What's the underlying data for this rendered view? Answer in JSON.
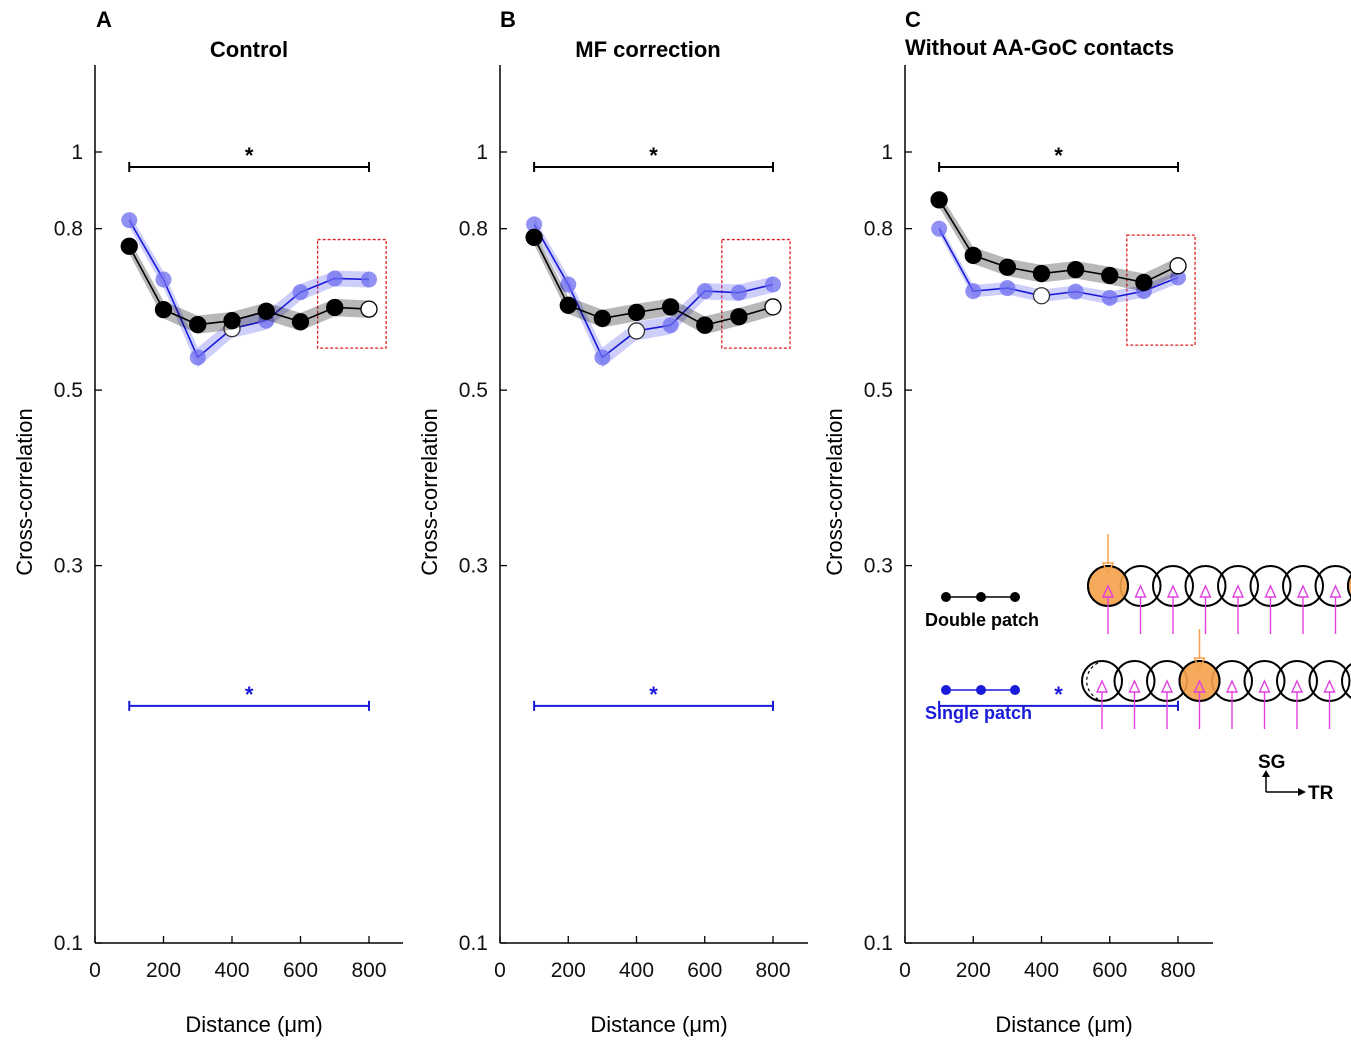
{
  "chart_data": [
    {
      "type": "line",
      "panel_letter": "A",
      "title": "Control",
      "xlabel": "Distance (μm)",
      "ylabel": "Cross-correlation",
      "xlim": [
        0,
        900
      ],
      "ylim": [
        0.1,
        1.2
      ],
      "y_scale": "log",
      "xticks": [
        0,
        200,
        400,
        600,
        800
      ],
      "xtick_labels": [
        "0",
        "200",
        "400",
        "600",
        "800"
      ],
      "yticks": [
        0.1,
        0.3,
        0.5,
        0.8,
        1
      ],
      "ytick_labels": [
        "0.1",
        "0.3",
        "0.5",
        "0.8",
        "1"
      ],
      "grid": false,
      "x": [
        100,
        200,
        300,
        400,
        500,
        600,
        700,
        800
      ],
      "series": [
        {
          "name": "Double patch",
          "color": "#000000",
          "values": [
            0.76,
            0.632,
            0.605,
            0.612,
            0.629,
            0.61,
            0.636,
            0.633
          ],
          "band": 0.016,
          "open_index": 7
        },
        {
          "name": "Single patch",
          "color": "#1a1adb",
          "values": [
            0.82,
            0.69,
            0.55,
            0.598,
            0.612,
            0.665,
            0.692,
            0.69
          ],
          "band": 0.016,
          "open_index": 3
        }
      ],
      "significance": [
        {
          "label": "*",
          "color": "#000000",
          "y": 0.98,
          "x_range": [
            100,
            800
          ]
        },
        {
          "label": "*",
          "color": "#1a1adb",
          "y": 0.2,
          "x_range": [
            100,
            800
          ]
        }
      ],
      "highlight_box": {
        "x_range": [
          650,
          850
        ],
        "y_range": [
          0.565,
          0.775
        ],
        "color": "#e02020"
      }
    },
    {
      "type": "line",
      "panel_letter": "B",
      "title": "MF correction",
      "xlabel": "Distance (μm)",
      "ylabel": "Cross-correlation",
      "xlim": [
        0,
        900
      ],
      "ylim": [
        0.1,
        1.2
      ],
      "y_scale": "log",
      "xticks": [
        0,
        200,
        400,
        600,
        800
      ],
      "xtick_labels": [
        "0",
        "200",
        "400",
        "600",
        "800"
      ],
      "yticks": [
        0.1,
        0.3,
        0.5,
        0.8,
        1
      ],
      "ytick_labels": [
        "0.1",
        "0.3",
        "0.5",
        "0.8",
        "1"
      ],
      "grid": false,
      "x": [
        100,
        200,
        300,
        400,
        500,
        600,
        700,
        800
      ],
      "series": [
        {
          "name": "Double patch",
          "color": "#000000",
          "values": [
            0.78,
            0.64,
            0.616,
            0.627,
            0.637,
            0.604,
            0.619,
            0.637
          ],
          "band": 0.016,
          "open_index": 7
        },
        {
          "name": "Single patch",
          "color": "#1a1adb",
          "values": [
            0.81,
            0.68,
            0.55,
            0.594,
            0.604,
            0.667,
            0.664,
            0.68
          ],
          "band": 0.016,
          "open_index": 3
        }
      ],
      "significance": [
        {
          "label": "*",
          "color": "#000000",
          "y": 0.98,
          "x_range": [
            100,
            800
          ]
        },
        {
          "label": "*",
          "color": "#1a1adb",
          "y": 0.2,
          "x_range": [
            100,
            800
          ]
        }
      ],
      "highlight_box": {
        "x_range": [
          650,
          850
        ],
        "y_range": [
          0.565,
          0.775
        ],
        "color": "#e02020"
      }
    },
    {
      "type": "line",
      "panel_letter": "C",
      "title": "Without AA-GoC contacts",
      "xlabel": "Distance (μm)",
      "ylabel": "Cross-correlation",
      "xlim": [
        0,
        900
      ],
      "ylim": [
        0.1,
        1.2
      ],
      "y_scale": "log",
      "xticks": [
        0,
        200,
        400,
        600,
        800
      ],
      "xtick_labels": [
        "0",
        "200",
        "400",
        "600",
        "800"
      ],
      "yticks": [
        0.1,
        0.3,
        0.5,
        0.8,
        1
      ],
      "ytick_labels": [
        "0.1",
        "0.3",
        "0.5",
        "0.8",
        "1"
      ],
      "grid": false,
      "x": [
        100,
        200,
        300,
        400,
        500,
        600,
        700,
        800
      ],
      "series": [
        {
          "name": "Double patch",
          "color": "#000000",
          "values": [
            0.87,
            0.74,
            0.715,
            0.702,
            0.71,
            0.698,
            0.684,
            0.718
          ],
          "band": 0.018,
          "open_index": 7
        },
        {
          "name": "Single patch",
          "color": "#1a1adb",
          "values": [
            0.8,
            0.667,
            0.673,
            0.658,
            0.666,
            0.654,
            0.667,
            0.694
          ],
          "band": 0.012,
          "open_index": 3
        }
      ],
      "significance": [
        {
          "label": "*",
          "color": "#000000",
          "y": 0.98,
          "x_range": [
            100,
            800
          ]
        },
        {
          "label": "*",
          "color": "#1a1adb",
          "y": 0.2,
          "x_range": [
            100,
            800
          ]
        }
      ],
      "highlight_box": {
        "x_range": [
          650,
          850
        ],
        "y_range": [
          0.57,
          0.785
        ],
        "color": "#e02020"
      }
    }
  ],
  "legend": {
    "double_label": "Double patch",
    "single_label": "Single patch",
    "double_color": "#000000",
    "single_color": "#1a1adb"
  },
  "schematic": {
    "stim_color": "#f5a14a",
    "input_color": "#e040e0",
    "axis_up_label": "SG",
    "axis_right_label": "TR"
  }
}
